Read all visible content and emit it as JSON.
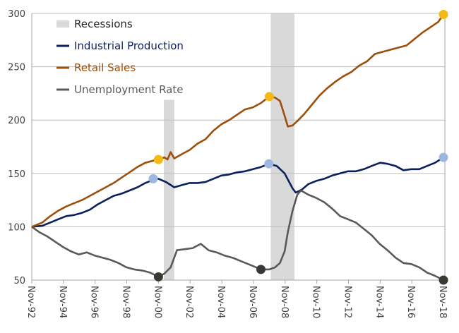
{
  "chart_data": {
    "type": "line",
    "title": "",
    "xlabel": "",
    "ylabel": "",
    "ylim": [
      50,
      300
    ],
    "yticks": [
      50,
      100,
      150,
      200,
      250,
      300
    ],
    "x_start": 1992.83,
    "x_end": 2018.83,
    "xtick_labels": [
      "Nov-92",
      "Nov-94",
      "Nov-96",
      "Nov-98",
      "Nov-00",
      "Nov-02",
      "Nov-04",
      "Nov-06",
      "Nov-08",
      "Nov-10",
      "Nov-12",
      "Nov-14",
      "Nov-16",
      "Nov-18"
    ],
    "grid": "horizontal",
    "legend_position": "top-left",
    "recessions": [
      {
        "start": 2001.17,
        "end": 2001.83,
        "label": "Recessions"
      },
      {
        "start": 2007.92,
        "end": 2009.42,
        "label": "Recessions"
      }
    ],
    "legend": [
      {
        "label": "Recessions",
        "type": "band",
        "color": "#d9d9d9"
      },
      {
        "label": "Industrial Production",
        "type": "line",
        "color": "#0b1f5c"
      },
      {
        "label": "Retail Sales",
        "type": "line",
        "color": "#9c4f0c"
      },
      {
        "label": "Unemployment Rate",
        "type": "line",
        "color": "#595959"
      }
    ],
    "series": [
      {
        "name": "Industrial Production",
        "color": "#0b1f5c",
        "marker_color": "#9db8e0",
        "x": [
          1992.83,
          1993.5,
          1994.0,
          1994.5,
          1995.0,
          1995.5,
          1996.0,
          1996.5,
          1997.0,
          1997.5,
          1998.0,
          1998.5,
          1999.0,
          1999.5,
          2000.0,
          2000.5,
          2000.83,
          2001.3,
          2001.83,
          2002.3,
          2002.8,
          2003.3,
          2003.8,
          2004.3,
          2004.8,
          2005.3,
          2005.8,
          2006.3,
          2006.8,
          2007.3,
          2007.83,
          2008.3,
          2008.8,
          2009.3,
          2009.5,
          2009.9,
          2010.3,
          2010.8,
          2011.3,
          2011.8,
          2012.3,
          2012.8,
          2013.3,
          2013.8,
          2014.3,
          2014.83,
          2015.3,
          2015.8,
          2016.3,
          2016.8,
          2017.3,
          2017.8,
          2018.3,
          2018.83
        ],
        "values": [
          100,
          101,
          104,
          107,
          110,
          111,
          113,
          116,
          121,
          125,
          129,
          131,
          134,
          137,
          141,
          144,
          145,
          142,
          137,
          139,
          141,
          141,
          142,
          145,
          148,
          149,
          151,
          152,
          154,
          156,
          159,
          157,
          150,
          136,
          132,
          135,
          140,
          143,
          145,
          148,
          150,
          152,
          152,
          154,
          157,
          160,
          159,
          157,
          153,
          154,
          154,
          157,
          160,
          165
        ]
      },
      {
        "name": "Retail Sales",
        "color": "#9c4f0c",
        "marker_color": "#f5b915",
        "x": [
          1992.83,
          1993.5,
          1994.0,
          1994.5,
          1995.0,
          1995.5,
          1996.0,
          1996.5,
          1997.0,
          1997.5,
          1998.0,
          1998.5,
          1999.0,
          1999.5,
          2000.0,
          2000.5,
          2000.83,
          2001.2,
          2001.4,
          2001.6,
          2001.83,
          2002.3,
          2002.8,
          2003.3,
          2003.8,
          2004.3,
          2004.8,
          2005.3,
          2005.8,
          2006.3,
          2006.8,
          2007.3,
          2007.83,
          2008.2,
          2008.5,
          2008.8,
          2009.0,
          2009.3,
          2009.6,
          2010.0,
          2010.5,
          2011.0,
          2011.5,
          2012.0,
          2012.5,
          2013.0,
          2013.5,
          2014.0,
          2014.5,
          2015.0,
          2015.5,
          2016.0,
          2016.5,
          2017.0,
          2017.5,
          2018.0,
          2018.5,
          2018.83
        ],
        "values": [
          100,
          104,
          110,
          115,
          119,
          122,
          125,
          129,
          133,
          137,
          141,
          146,
          151,
          156,
          160,
          162,
          163,
          165,
          163,
          170,
          164,
          168,
          172,
          178,
          182,
          190,
          196,
          200,
          205,
          210,
          212,
          216,
          222,
          221,
          218,
          204,
          194,
          195,
          199,
          205,
          214,
          223,
          230,
          236,
          241,
          245,
          251,
          255,
          262,
          264,
          266,
          268,
          270,
          276,
          282,
          287,
          292,
          299
        ]
      },
      {
        "name": "Unemployment Rate",
        "color": "#595959",
        "marker_color": "#3a3a35",
        "x": [
          1992.83,
          1993.3,
          1993.8,
          1994.3,
          1994.8,
          1995.3,
          1995.8,
          1996.3,
          1996.8,
          1997.3,
          1997.8,
          1998.3,
          1998.8,
          1999.3,
          1999.8,
          2000.3,
          2000.83,
          2001.2,
          2001.6,
          2002.0,
          2002.5,
          2003.0,
          2003.5,
          2004.0,
          2004.5,
          2005.0,
          2005.5,
          2006.0,
          2006.5,
          2007.0,
          2007.3,
          2007.83,
          2008.2,
          2008.5,
          2008.8,
          2009.0,
          2009.3,
          2009.6,
          2009.83,
          2010.3,
          2010.8,
          2011.3,
          2011.8,
          2012.3,
          2012.8,
          2013.3,
          2013.8,
          2014.3,
          2014.8,
          2015.3,
          2015.8,
          2016.3,
          2016.8,
          2017.3,
          2017.8,
          2018.3,
          2018.83
        ],
        "values": [
          100,
          95,
          91,
          86,
          81,
          77,
          74,
          76,
          73,
          71,
          69,
          66,
          62,
          60,
          59,
          57,
          53,
          56,
          62,
          78,
          79,
          80,
          84,
          78,
          76,
          73,
          71,
          68,
          65,
          62,
          60,
          60,
          62,
          66,
          77,
          95,
          115,
          130,
          134,
          130,
          127,
          123,
          117,
          110,
          107,
          104,
          98,
          92,
          84,
          78,
          71,
          66,
          65,
          62,
          57,
          54,
          50
        ]
      }
    ],
    "highlight_markers": [
      {
        "series": "Retail Sales",
        "x": 2000.83,
        "value": 163
      },
      {
        "series": "Retail Sales",
        "x": 2007.83,
        "value": 222
      },
      {
        "series": "Retail Sales",
        "x": 2018.83,
        "value": 299
      },
      {
        "series": "Industrial Production",
        "x": 2000.5,
        "value": 145
      },
      {
        "series": "Industrial Production",
        "x": 2007.8,
        "value": 159
      },
      {
        "series": "Industrial Production",
        "x": 2018.83,
        "value": 165
      },
      {
        "series": "Unemployment Rate",
        "x": 2000.83,
        "value": 53
      },
      {
        "series": "Unemployment Rate",
        "x": 2007.3,
        "value": 60
      },
      {
        "series": "Unemployment Rate",
        "x": 2018.83,
        "value": 50
      }
    ]
  }
}
